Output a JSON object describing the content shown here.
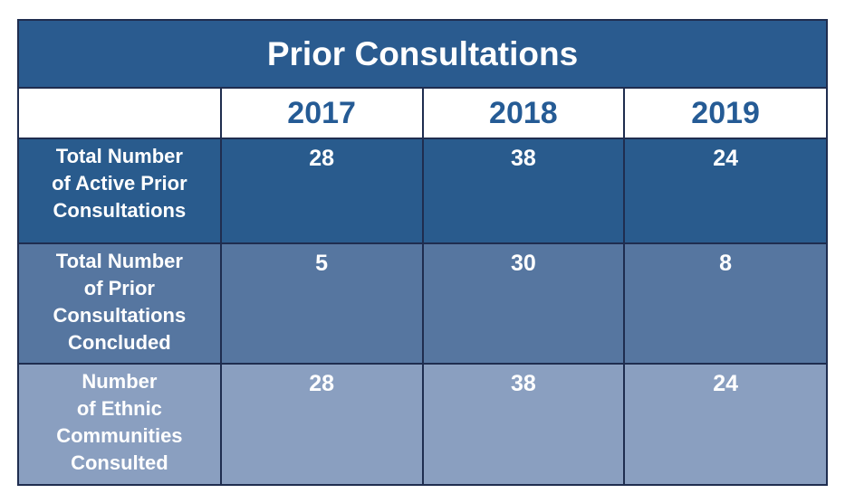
{
  "chart_data": {
    "type": "table",
    "title": "Prior Consultations",
    "columns": [
      "2017",
      "2018",
      "2019"
    ],
    "rows": [
      {
        "label_lines": [
          "Total Number",
          "of Active Prior",
          "Consultations"
        ],
        "values": [
          28,
          38,
          24
        ]
      },
      {
        "label_lines": [
          "Total Number",
          "of Prior",
          "Consultations",
          "Concluded"
        ],
        "values": [
          5,
          30,
          8
        ]
      },
      {
        "label_lines": [
          "Number",
          "of Ethnic",
          "Communities",
          "Consulted"
        ],
        "values": [
          28,
          38,
          24
        ]
      }
    ]
  },
  "colors": {
    "title_bg": "#2a5b8f",
    "year_text": "#255b95",
    "row_1_bg": "#295b8d",
    "row_2_bg": "#5676a0",
    "row_3_bg": "#8a9fc0",
    "border": "#1f2d4f"
  }
}
